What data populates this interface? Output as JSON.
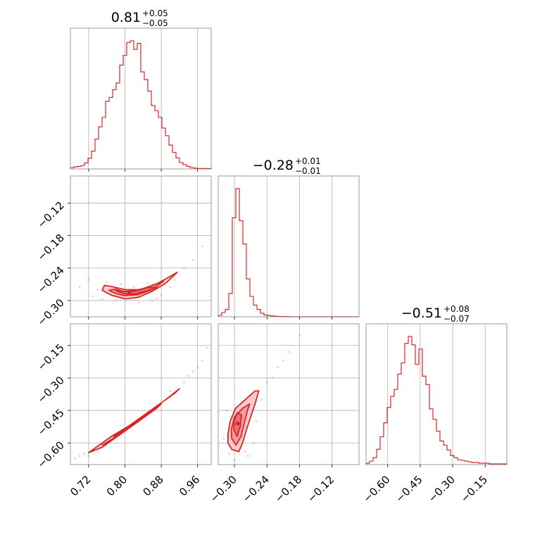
{
  "colors": {
    "accent": "#d62728",
    "fill_light": "#f6b8bb",
    "frame": "#808080",
    "grid": "#b0b0b0"
  },
  "titles": [
    {
      "main": "0.81",
      "plus": "+0.05",
      "minus": "−0.05"
    },
    {
      "main": "−0.28",
      "plus": "+0.01",
      "minus": "−0.01"
    },
    {
      "main": "−0.51",
      "plus": "+0.08",
      "minus": "−0.07"
    }
  ],
  "chart_data": {
    "type": "corner",
    "params": [
      {
        "index": 0,
        "range": [
          0.68,
          0.99
        ],
        "ticks": [
          0.72,
          0.8,
          0.88,
          0.96
        ],
        "tick_labels": [
          "0.72",
          "0.80",
          "0.88",
          "0.96"
        ],
        "median": 0.81,
        "plus": 0.05,
        "minus": 0.05
      },
      {
        "index": 1,
        "range": [
          -0.33,
          -0.07
        ],
        "ticks": [
          -0.3,
          -0.24,
          -0.18,
          -0.12
        ],
        "tick_labels": [
          "−0.30",
          "−0.24",
          "−0.18",
          "−0.12"
        ],
        "median": -0.28,
        "plus": 0.01,
        "minus": 0.01
      },
      {
        "index": 2,
        "range": [
          -0.7,
          -0.05
        ],
        "ticks": [
          -0.6,
          -0.45,
          -0.3,
          -0.15
        ],
        "tick_labels": [
          "−0.60",
          "−0.45",
          "−0.30",
          "−0.15"
        ],
        "median": -0.51,
        "plus": 0.08,
        "minus": 0.07
      }
    ],
    "histograms": [
      {
        "param": 0,
        "bin_start": 0.68,
        "bin_width": 0.00775,
        "counts": [
          0.3,
          0.5,
          0.6,
          0.8,
          1.4,
          2.5,
          4.2,
          7.0,
          9.9,
          12.1,
          15.9,
          16.8,
          18.6,
          20.2,
          24.4,
          26.7,
          29.7,
          30.1,
          28.1,
          29.5,
          22.8,
          21.0,
          18.3,
          14.9,
          13.7,
          12.1,
          9.6,
          7.8,
          5.6,
          3.9,
          2.6,
          1.5,
          1.0,
          0.6,
          0.3,
          0.2,
          0.1,
          0.1,
          0.1,
          0.1
        ]
      },
      {
        "param": 1,
        "bin_start": -0.33,
        "bin_width": 0.0065,
        "counts": [
          0.5,
          1.5,
          2.5,
          8.0,
          34.0,
          44.0,
          33.0,
          25.0,
          13.0,
          7.0,
          4.0,
          2.5,
          1.2,
          0.6,
          0.4,
          0.3,
          0.2,
          0.1,
          0.1,
          0.1,
          0,
          0,
          0,
          0,
          0,
          0,
          0,
          0,
          0,
          0,
          0,
          0,
          0,
          0,
          0,
          0,
          0,
          0,
          0,
          0
        ]
      },
      {
        "param": 2,
        "bin_start": -0.7,
        "bin_width": 0.01625,
        "counts": [
          0.2,
          0.5,
          1.0,
          2.2,
          4.0,
          6.0,
          8.2,
          9.8,
          10.8,
          13.0,
          14.6,
          17.4,
          18.4,
          17.2,
          14.4,
          16.6,
          12.7,
          11.5,
          8.0,
          6.5,
          4.8,
          3.4,
          2.8,
          2.1,
          1.3,
          1.0,
          0.7,
          0.6,
          0.5,
          0.4,
          0.3,
          0.3,
          0.2,
          0.2,
          0.2,
          0.1,
          0.1,
          0.1,
          0.1,
          0.1
        ]
      }
    ],
    "contour_panels": [
      {
        "x_param": 0,
        "y_param": 1,
        "levels": [
          {
            "points": [
              [
                0.75,
                -0.281
              ],
              [
                0.77,
                -0.29
              ],
              [
                0.8,
                -0.297
              ],
              [
                0.83,
                -0.294
              ],
              [
                0.86,
                -0.283
              ],
              [
                0.89,
                -0.268
              ],
              [
                0.915,
                -0.248
              ],
              [
                0.89,
                -0.26
              ],
              [
                0.86,
                -0.274
              ],
              [
                0.83,
                -0.28
              ],
              [
                0.8,
                -0.28
              ],
              [
                0.77,
                -0.274
              ],
              [
                0.755,
                -0.272
              ]
            ]
          },
          {
            "points": [
              [
                0.765,
                -0.281
              ],
              [
                0.78,
                -0.287
              ],
              [
                0.8,
                -0.291
              ],
              [
                0.83,
                -0.289
              ],
              [
                0.86,
                -0.28
              ],
              [
                0.885,
                -0.264
              ],
              [
                0.86,
                -0.272
              ],
              [
                0.83,
                -0.281
              ],
              [
                0.8,
                -0.284
              ],
              [
                0.78,
                -0.279
              ]
            ]
          },
          {
            "points": [
              [
                0.78,
                -0.282
              ],
              [
                0.8,
                -0.288
              ],
              [
                0.82,
                -0.288
              ],
              [
                0.85,
                -0.282
              ],
              [
                0.87,
                -0.276
              ],
              [
                0.85,
                -0.276
              ],
              [
                0.82,
                -0.283
              ],
              [
                0.8,
                -0.283
              ]
            ]
          }
        ],
        "center": [
          0.81,
          -0.285
        ],
        "points": [
          [
            0.72,
            -0.262
          ],
          [
            0.74,
            -0.28
          ],
          [
            0.73,
            -0.292
          ],
          [
            0.76,
            -0.266
          ],
          [
            0.78,
            -0.3
          ],
          [
            0.83,
            -0.304
          ],
          [
            0.87,
            -0.296
          ],
          [
            0.9,
            -0.275
          ],
          [
            0.93,
            -0.24
          ],
          [
            0.95,
            -0.225
          ],
          [
            0.97,
            -0.2
          ],
          [
            0.7,
            -0.275
          ],
          [
            0.79,
            -0.27
          ],
          [
            0.85,
            -0.268
          ],
          [
            0.88,
            -0.29
          ],
          [
            0.75,
            -0.298
          ],
          [
            0.82,
            -0.275
          ],
          [
            0.91,
            -0.262
          ],
          [
            0.86,
            -0.3
          ],
          [
            0.77,
            -0.286
          ]
        ]
      },
      {
        "x_param": 0,
        "y_param": 2,
        "levels": [
          {
            "points": [
              [
                0.73,
                -0.63
              ],
              [
                0.77,
                -0.57
              ],
              [
                0.81,
                -0.52
              ],
              [
                0.85,
                -0.46
              ],
              [
                0.89,
                -0.4
              ],
              [
                0.92,
                -0.35
              ],
              [
                0.91,
                -0.37
              ],
              [
                0.87,
                -0.43
              ],
              [
                0.83,
                -0.5
              ],
              [
                0.79,
                -0.56
              ],
              [
                0.75,
                -0.62
              ],
              [
                0.72,
                -0.645
              ]
            ]
          },
          {
            "points": [
              [
                0.76,
                -0.6
              ],
              [
                0.8,
                -0.54
              ],
              [
                0.84,
                -0.48
              ],
              [
                0.88,
                -0.42
              ],
              [
                0.87,
                -0.44
              ],
              [
                0.83,
                -0.5
              ],
              [
                0.79,
                -0.56
              ],
              [
                0.75,
                -0.61
              ]
            ]
          },
          {
            "points": [
              [
                0.78,
                -0.56
              ],
              [
                0.81,
                -0.52
              ],
              [
                0.84,
                -0.475
              ],
              [
                0.83,
                -0.49
              ],
              [
                0.8,
                -0.535
              ],
              [
                0.775,
                -0.57
              ]
            ]
          }
        ],
        "points": [
          [
            0.69,
            -0.67
          ],
          [
            0.71,
            -0.65
          ],
          [
            0.93,
            -0.32
          ],
          [
            0.95,
            -0.27
          ],
          [
            0.97,
            -0.22
          ],
          [
            0.98,
            -0.16
          ],
          [
            0.7,
            -0.66
          ],
          [
            0.94,
            -0.29
          ],
          [
            0.96,
            -0.25
          ],
          [
            0.74,
            -0.64
          ],
          [
            0.9,
            -0.36
          ],
          [
            0.72,
            -0.66
          ]
        ]
      },
      {
        "x_param": 1,
        "y_param": 2,
        "levels": [
          {
            "points": [
              [
                -0.312,
                -0.6
              ],
              [
                -0.305,
                -0.63
              ],
              [
                -0.292,
                -0.64
              ],
              [
                -0.285,
                -0.6
              ],
              [
                -0.278,
                -0.54
              ],
              [
                -0.27,
                -0.48
              ],
              [
                -0.262,
                -0.42
              ],
              [
                -0.255,
                -0.36
              ],
              [
                -0.262,
                -0.36
              ],
              [
                -0.28,
                -0.4
              ],
              [
                -0.298,
                -0.44
              ],
              [
                -0.308,
                -0.5
              ],
              [
                -0.312,
                -0.56
              ]
            ]
          },
          {
            "points": [
              [
                -0.305,
                -0.58
              ],
              [
                -0.297,
                -0.61
              ],
              [
                -0.288,
                -0.57
              ],
              [
                -0.282,
                -0.51
              ],
              [
                -0.276,
                -0.45
              ],
              [
                -0.272,
                -0.42
              ],
              [
                -0.285,
                -0.44
              ],
              [
                -0.3,
                -0.48
              ],
              [
                -0.306,
                -0.54
              ]
            ]
          },
          {
            "points": [
              [
                -0.301,
                -0.54
              ],
              [
                -0.295,
                -0.57
              ],
              [
                -0.289,
                -0.52
              ],
              [
                -0.287,
                -0.47
              ],
              [
                -0.295,
                -0.46
              ],
              [
                -0.301,
                -0.5
              ]
            ]
          }
        ],
        "center": [
          -0.294,
          -0.51
        ],
        "points": [
          [
            -0.32,
            -0.58
          ],
          [
            -0.31,
            -0.65
          ],
          [
            -0.3,
            -0.68
          ],
          [
            -0.28,
            -0.64
          ],
          [
            -0.26,
            -0.5
          ],
          [
            -0.25,
            -0.4
          ],
          [
            -0.24,
            -0.32
          ],
          [
            -0.22,
            -0.25
          ],
          [
            -0.2,
            -0.18
          ],
          [
            -0.18,
            -0.1
          ],
          [
            -0.315,
            -0.45
          ],
          [
            -0.275,
            -0.66
          ],
          [
            -0.265,
            -0.6
          ],
          [
            -0.23,
            -0.3
          ],
          [
            -0.21,
            -0.22
          ]
        ]
      }
    ]
  }
}
